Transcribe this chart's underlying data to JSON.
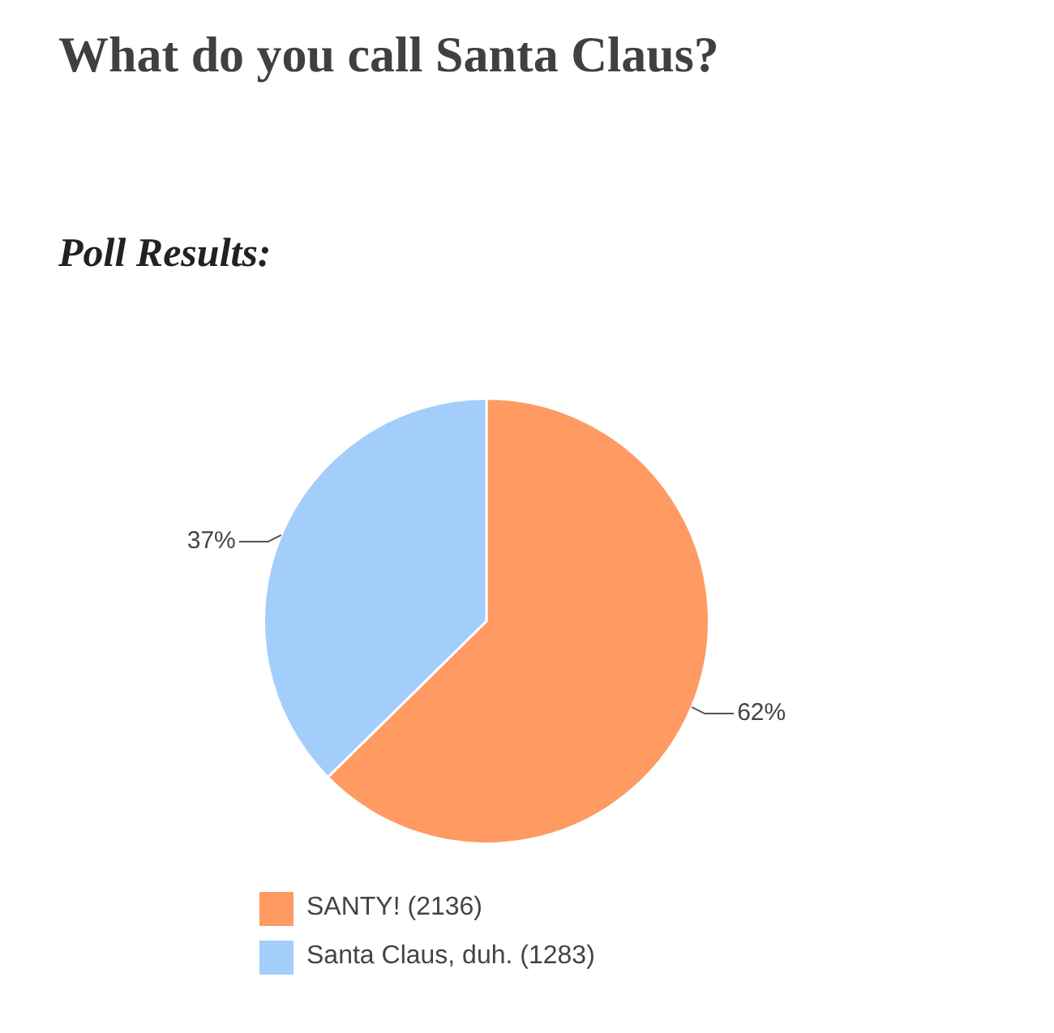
{
  "chart_data": {
    "type": "pie",
    "title": "What do you call Santa Claus?",
    "subtitle": "Poll Results:",
    "categories": [
      "SANTY! (2136)",
      "Santa Claus, duh. (1283)"
    ],
    "values": [
      62,
      37
    ],
    "colors": [
      "#ff9a62",
      "#a3cdfb"
    ],
    "value_labels": [
      "62%",
      "37%"
    ],
    "legend": "bottom"
  }
}
